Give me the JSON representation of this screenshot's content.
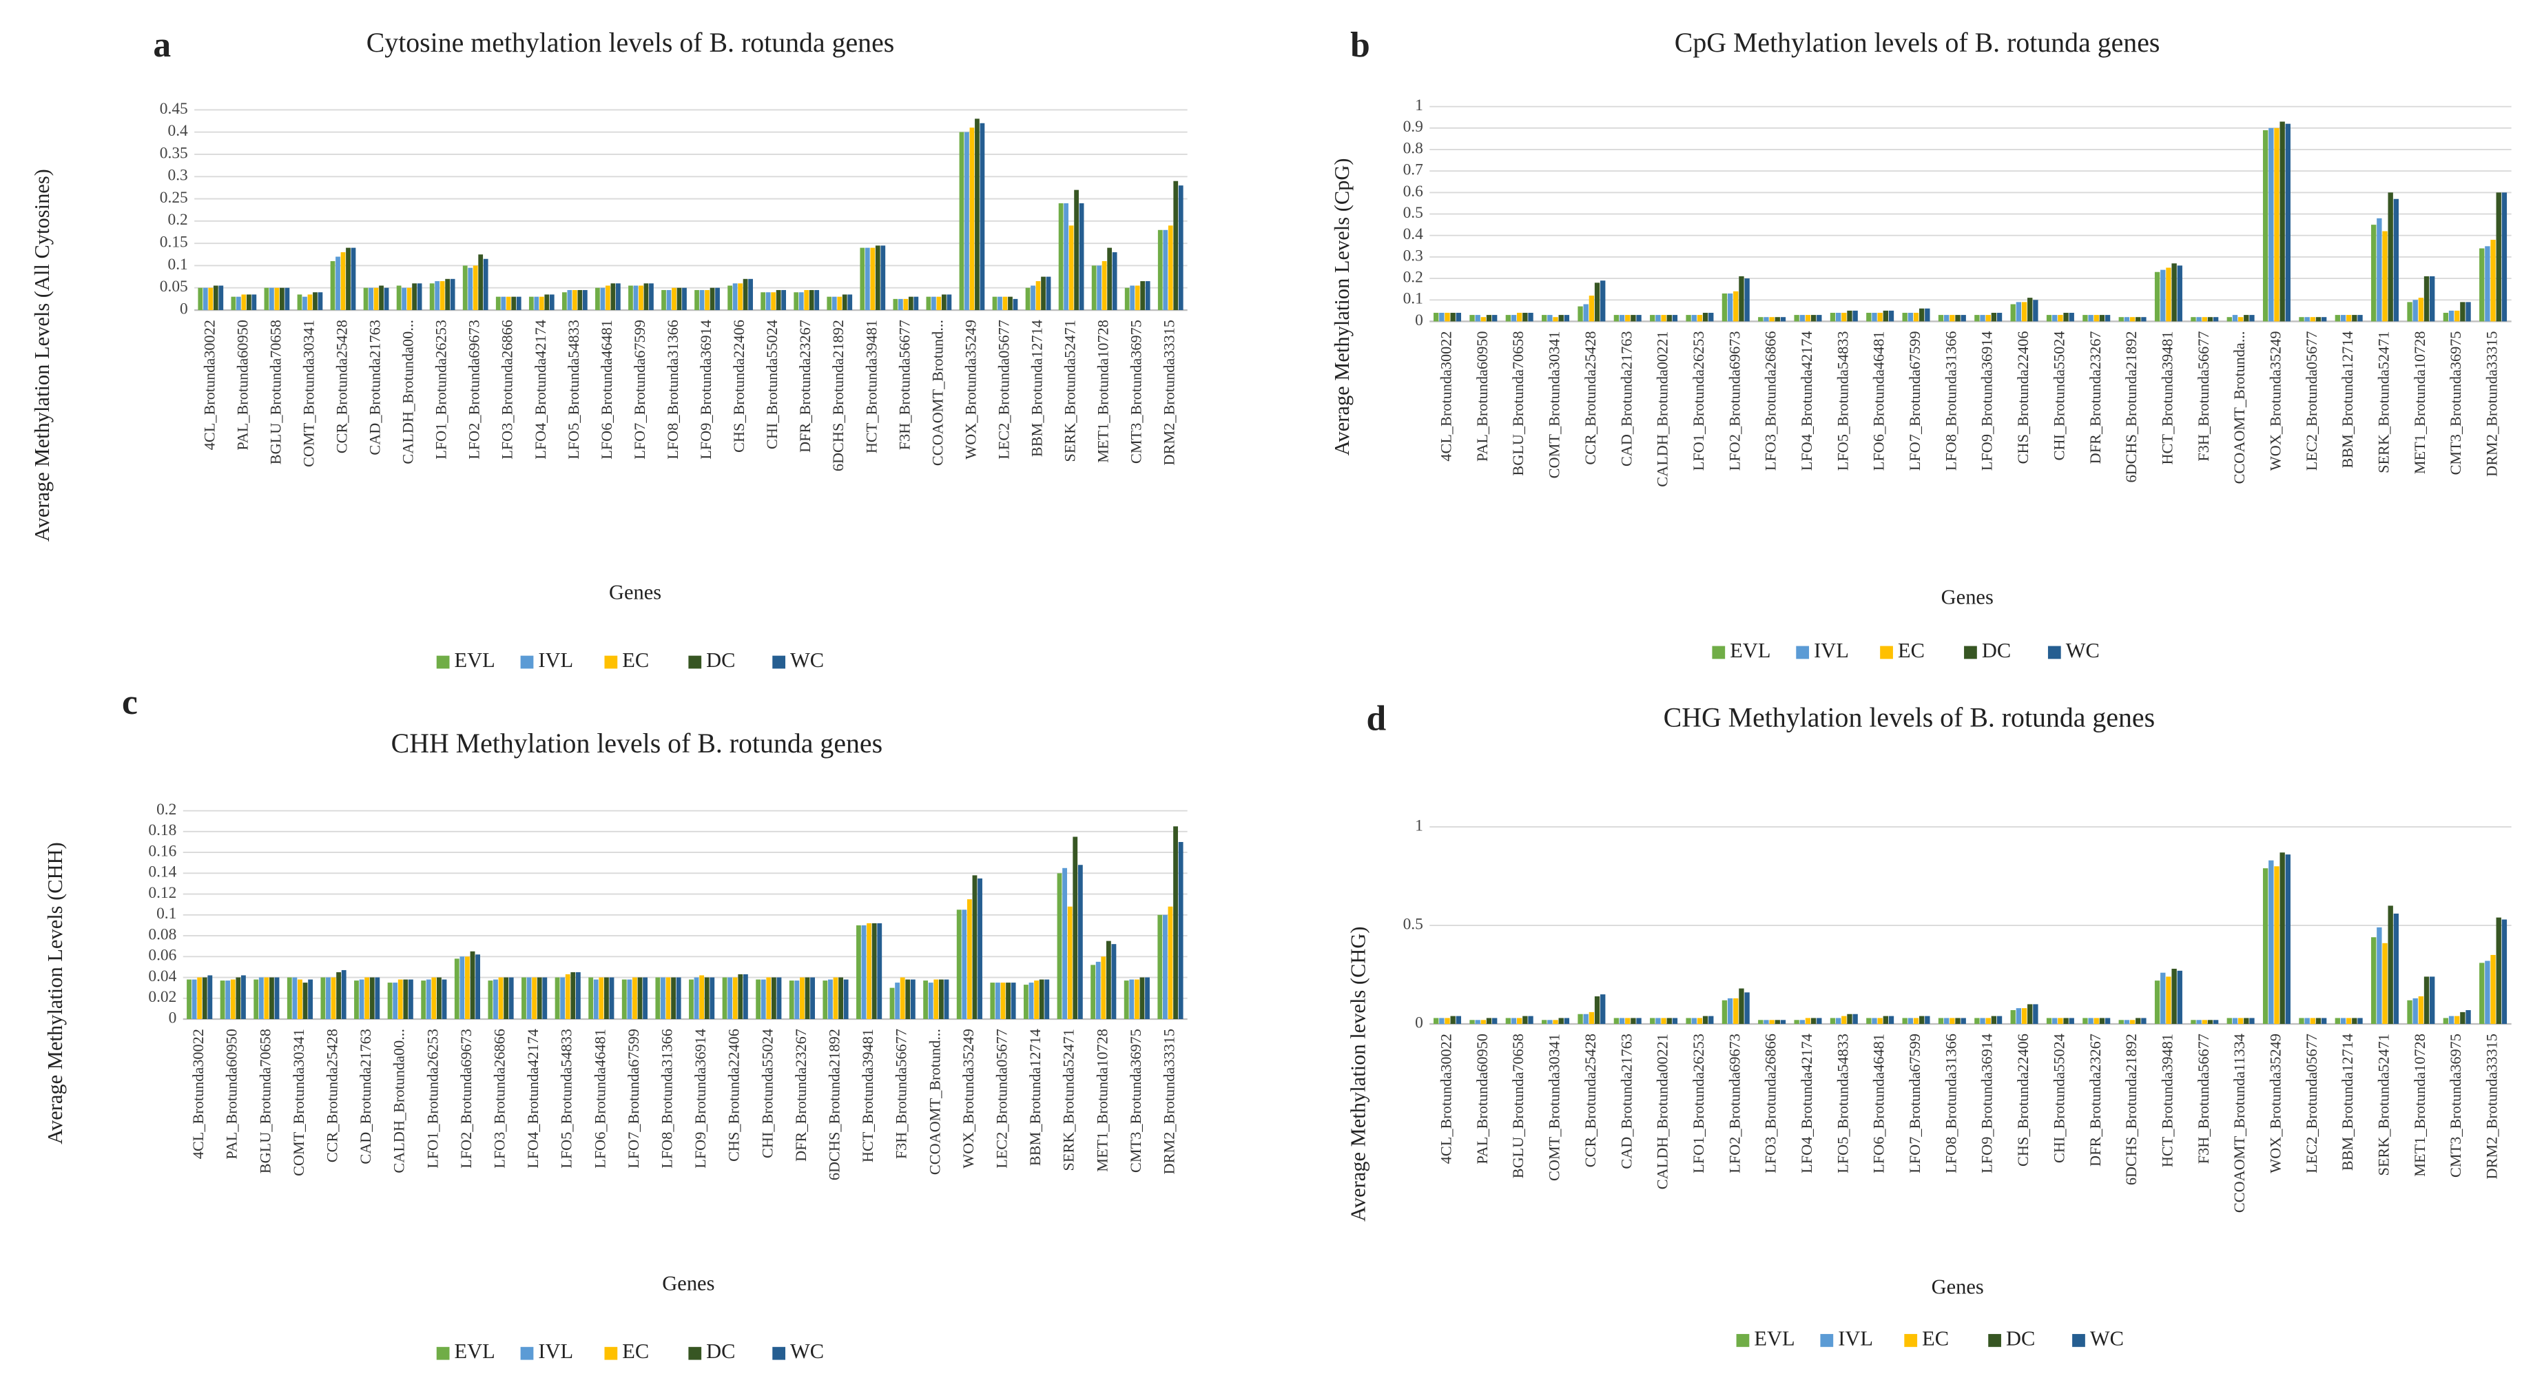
{
  "chart_data": [
    {
      "type": "bar",
      "label": "a",
      "title": "Cytosine methylation levels of B. rotunda genes",
      "x_label": "Genes",
      "y_label": "Average Methylation Levels (All Cytosines)",
      "categories": [
        "4CL_Brotunda30022",
        "PAL_Brotunda60950",
        "BGLU_Brotunda70658",
        "COMT_Brotunda30341",
        "CCR_Brotunda25428",
        "CAD_Brotunda21763",
        "CALDH_Brotunda00...",
        "LFO1_Brotunda26253",
        "LFO2_Brotunda69673",
        "LFO3_Brotunda26866",
        "LFO4_Brotunda42174",
        "LFO5_Brotunda54833",
        "LFO6_Brotunda46481",
        "LFO7_Brotunda67599",
        "LFO8_Brotunda31366",
        "LFO9_Brotunda36914",
        "CHS_Brotunda22406",
        "CHI_Brotunda55024",
        "DFR_Brotunda23267",
        "6DCHS_Brotunda21892",
        "HCT_Brotunda39481",
        "F3H_Brotunda56677",
        "CCOAOMT_Brotund...",
        "WOX_Brotunda35249",
        "LEC2_Brotunda05677",
        "BBM_Brotunda12714",
        "SERK_Brotunda52471",
        "MET1_Brotunda10728",
        "CMT3_Brotunda36975",
        "DRM2_Brotunda33315"
      ],
      "series": [
        {
          "name": "EVL",
          "color": "#70ad47",
          "values": [
            0.05,
            0.03,
            0.05,
            0.035,
            0.11,
            0.05,
            0.055,
            0.06,
            0.1,
            0.03,
            0.03,
            0.04,
            0.05,
            0.055,
            0.045,
            0.045,
            0.055,
            0.04,
            0.04,
            0.03,
            0.14,
            0.025,
            0.03,
            0.4,
            0.03,
            0.05,
            0.24,
            0.1,
            0.05,
            0.18
          ]
        },
        {
          "name": "IVL",
          "color": "#5b9bd5",
          "values": [
            0.05,
            0.03,
            0.05,
            0.03,
            0.12,
            0.05,
            0.05,
            0.065,
            0.095,
            0.03,
            0.03,
            0.045,
            0.05,
            0.055,
            0.045,
            0.045,
            0.06,
            0.04,
            0.04,
            0.03,
            0.14,
            0.025,
            0.03,
            0.4,
            0.03,
            0.055,
            0.24,
            0.1,
            0.055,
            0.18
          ]
        },
        {
          "name": "EC",
          "color": "#ffc000",
          "values": [
            0.05,
            0.035,
            0.05,
            0.035,
            0.13,
            0.05,
            0.05,
            0.065,
            0.1,
            0.03,
            0.03,
            0.045,
            0.055,
            0.055,
            0.05,
            0.045,
            0.06,
            0.04,
            0.045,
            0.03,
            0.14,
            0.025,
            0.03,
            0.41,
            0.03,
            0.065,
            0.19,
            0.11,
            0.055,
            0.19
          ]
        },
        {
          "name": "DC",
          "color": "#375623",
          "values": [
            0.055,
            0.035,
            0.05,
            0.04,
            0.14,
            0.055,
            0.06,
            0.07,
            0.125,
            0.03,
            0.035,
            0.045,
            0.06,
            0.06,
            0.05,
            0.05,
            0.07,
            0.045,
            0.045,
            0.035,
            0.145,
            0.03,
            0.035,
            0.43,
            0.03,
            0.075,
            0.27,
            0.14,
            0.065,
            0.29
          ]
        },
        {
          "name": "WC",
          "color": "#255e91",
          "values": [
            0.055,
            0.035,
            0.05,
            0.04,
            0.14,
            0.05,
            0.06,
            0.07,
            0.115,
            0.03,
            0.035,
            0.045,
            0.06,
            0.06,
            0.05,
            0.05,
            0.07,
            0.045,
            0.045,
            0.035,
            0.145,
            0.03,
            0.035,
            0.42,
            0.025,
            0.075,
            0.24,
            0.13,
            0.065,
            0.28
          ]
        }
      ],
      "ylim": [
        0,
        0.45
      ],
      "yticks": [
        0,
        0.05,
        0.1,
        0.15,
        0.2,
        0.25,
        0.3,
        0.35,
        0.4,
        0.45
      ],
      "grid": true,
      "legend": "bottom"
    },
    {
      "type": "bar",
      "label": "b",
      "title": "CpG Methylation levels of B. rotunda genes",
      "x_label": "Genes",
      "y_label": "Average Methylation Levels (CpG)",
      "categories": [
        "4CL_Brotunda30022",
        "PAL_Brotunda60950",
        "BGLU_Brotunda70658",
        "COMT_Brotunda30341",
        "CCR_Brotunda25428",
        "CAD_Brotunda21763",
        "CALDH_Brotunda00221",
        "LFO1_Brotunda26253",
        "LFO2_Brotunda69673",
        "LFO3_Brotunda26866",
        "LFO4_Brotunda42174",
        "LFO5_Brotunda54833",
        "LFO6_Brotunda46481",
        "LFO7_Brotunda67599",
        "LFO8_Brotunda31366",
        "LFO9_Brotunda36914",
        "CHS_Brotunda22406",
        "CHI_Brotunda55024",
        "DFR_Brotunda23267",
        "6DCHS_Brotunda21892",
        "HCT_Brotunda39481",
        "F3H_Brotunda56677",
        "CCOAOMT_Brotunda...",
        "WOX_Brotunda35249",
        "LEC2_Brotunda05677",
        "BBM_Brotunda12714",
        "SERK_Brotunda52471",
        "MET1_Brotunda10728",
        "CMT3_Brotunda36975",
        "DRM2_Brotunda33315"
      ],
      "series": [
        {
          "name": "EVL",
          "color": "#70ad47",
          "values": [
            0.04,
            0.03,
            0.03,
            0.03,
            0.07,
            0.03,
            0.03,
            0.03,
            0.13,
            0.02,
            0.03,
            0.04,
            0.04,
            0.04,
            0.03,
            0.03,
            0.08,
            0.03,
            0.03,
            0.02,
            0.23,
            0.02,
            0.02,
            0.89,
            0.02,
            0.03,
            0.45,
            0.09,
            0.04,
            0.34
          ]
        },
        {
          "name": "IVL",
          "color": "#5b9bd5",
          "values": [
            0.04,
            0.03,
            0.03,
            0.03,
            0.08,
            0.03,
            0.03,
            0.03,
            0.13,
            0.02,
            0.03,
            0.04,
            0.04,
            0.04,
            0.03,
            0.03,
            0.09,
            0.03,
            0.03,
            0.02,
            0.24,
            0.02,
            0.03,
            0.9,
            0.02,
            0.03,
            0.48,
            0.1,
            0.05,
            0.35
          ]
        },
        {
          "name": "EC",
          "color": "#ffc000",
          "values": [
            0.04,
            0.02,
            0.04,
            0.02,
            0.12,
            0.03,
            0.03,
            0.03,
            0.14,
            0.02,
            0.03,
            0.04,
            0.04,
            0.04,
            0.03,
            0.03,
            0.09,
            0.03,
            0.03,
            0.02,
            0.25,
            0.02,
            0.02,
            0.9,
            0.02,
            0.03,
            0.42,
            0.11,
            0.05,
            0.38
          ]
        },
        {
          "name": "DC",
          "color": "#375623",
          "values": [
            0.04,
            0.03,
            0.04,
            0.03,
            0.18,
            0.03,
            0.03,
            0.04,
            0.21,
            0.02,
            0.03,
            0.05,
            0.05,
            0.06,
            0.03,
            0.04,
            0.11,
            0.04,
            0.03,
            0.02,
            0.27,
            0.02,
            0.03,
            0.93,
            0.02,
            0.03,
            0.6,
            0.21,
            0.09,
            0.6
          ]
        },
        {
          "name": "WC",
          "color": "#255e91",
          "values": [
            0.04,
            0.03,
            0.04,
            0.03,
            0.19,
            0.03,
            0.03,
            0.04,
            0.2,
            0.02,
            0.03,
            0.05,
            0.05,
            0.06,
            0.03,
            0.04,
            0.1,
            0.04,
            0.03,
            0.02,
            0.26,
            0.02,
            0.03,
            0.92,
            0.02,
            0.03,
            0.57,
            0.21,
            0.09,
            0.6
          ]
        }
      ],
      "ylim": [
        0,
        1
      ],
      "yticks": [
        0,
        0.1,
        0.2,
        0.3,
        0.4,
        0.5,
        0.6,
        0.7,
        0.8,
        0.9,
        1
      ],
      "grid": true,
      "legend": "bottom"
    },
    {
      "type": "bar",
      "label": "c",
      "title": "CHH Methylation levels of B. rotunda genes",
      "x_label": "Genes",
      "y_label": "Average Methylation Levels (CHH)",
      "categories": [
        "4CL_Brotunda30022",
        "PAL_Brotunda60950",
        "BGLU_Brotunda70658",
        "COMT_Brotunda30341",
        "CCR_Brotunda25428",
        "CAD_Brotunda21763",
        "CALDH_Brotunda00...",
        "LFO1_Brotunda26253",
        "LFO2_Brotunda69673",
        "LFO3_Brotunda26866",
        "LFO4_Brotunda42174",
        "LFO5_Brotunda54833",
        "LFO6_Brotunda46481",
        "LFO7_Brotunda67599",
        "LFO8_Brotunda31366",
        "LFO9_Brotunda36914",
        "CHS_Brotunda22406",
        "CHI_Brotunda55024",
        "DFR_Brotunda23267",
        "6DCHS_Brotunda21892",
        "HCT_Brotunda39481",
        "F3H_Brotunda56677",
        "CCOAOMT_Brotund...",
        "WOX_Brotunda35249",
        "LEC2_Brotunda05677",
        "BBM_Brotunda12714",
        "SERK_Brotunda52471",
        "MET1_Brotunda10728",
        "CMT3_Brotunda36975",
        "DRM2_Brotunda33315"
      ],
      "series": [
        {
          "name": "EVL",
          "color": "#70ad47",
          "values": [
            0.038,
            0.037,
            0.038,
            0.04,
            0.04,
            0.037,
            0.035,
            0.037,
            0.058,
            0.037,
            0.04,
            0.04,
            0.04,
            0.038,
            0.04,
            0.038,
            0.04,
            0.038,
            0.037,
            0.037,
            0.09,
            0.03,
            0.037,
            0.105,
            0.035,
            0.033,
            0.14,
            0.052,
            0.037,
            0.1
          ]
        },
        {
          "name": "IVL",
          "color": "#5b9bd5",
          "values": [
            0.038,
            0.037,
            0.04,
            0.04,
            0.04,
            0.038,
            0.035,
            0.038,
            0.06,
            0.038,
            0.04,
            0.04,
            0.038,
            0.038,
            0.04,
            0.04,
            0.04,
            0.038,
            0.037,
            0.038,
            0.09,
            0.035,
            0.035,
            0.105,
            0.035,
            0.035,
            0.145,
            0.055,
            0.038,
            0.1
          ]
        },
        {
          "name": "EC",
          "color": "#ffc000",
          "values": [
            0.04,
            0.038,
            0.04,
            0.038,
            0.04,
            0.04,
            0.038,
            0.04,
            0.06,
            0.04,
            0.04,
            0.043,
            0.04,
            0.04,
            0.04,
            0.042,
            0.04,
            0.04,
            0.04,
            0.04,
            0.092,
            0.04,
            0.038,
            0.115,
            0.035,
            0.037,
            0.108,
            0.06,
            0.038,
            0.108
          ]
        },
        {
          "name": "DC",
          "color": "#375623",
          "values": [
            0.04,
            0.04,
            0.04,
            0.035,
            0.045,
            0.04,
            0.038,
            0.04,
            0.065,
            0.04,
            0.04,
            0.045,
            0.04,
            0.04,
            0.04,
            0.04,
            0.043,
            0.04,
            0.04,
            0.04,
            0.092,
            0.038,
            0.038,
            0.138,
            0.035,
            0.038,
            0.175,
            0.075,
            0.04,
            0.185
          ]
        },
        {
          "name": "WC",
          "color": "#255e91",
          "values": [
            0.042,
            0.042,
            0.04,
            0.038,
            0.047,
            0.04,
            0.038,
            0.038,
            0.062,
            0.04,
            0.04,
            0.045,
            0.04,
            0.04,
            0.04,
            0.04,
            0.043,
            0.04,
            0.04,
            0.038,
            0.092,
            0.038,
            0.038,
            0.135,
            0.035,
            0.038,
            0.148,
            0.072,
            0.04,
            0.17
          ]
        }
      ],
      "ylim": [
        0,
        0.2
      ],
      "yticks": [
        0,
        0.02,
        0.04,
        0.06,
        0.08,
        0.1,
        0.12,
        0.14,
        0.16,
        0.18,
        0.2
      ],
      "grid": true,
      "legend": "bottom"
    },
    {
      "type": "bar",
      "label": "d",
      "title": "CHG Methylation levels of B. rotunda genes",
      "x_label": "Genes",
      "y_label": "Average Methylation levels (CHG)",
      "categories": [
        "4CL_Brotunda30022",
        "PAL_Brotunda60950",
        "BGLU_Brotunda70658",
        "COMT_Brotunda30341",
        "CCR_Brotunda25428",
        "CAD_Brotunda21763",
        "CALDH_Brotunda00221",
        "LFO1_Brotunda26253",
        "LFO2_Brotunda69673",
        "LFO3_Brotunda26866",
        "LFO4_Brotunda42174",
        "LFO5_Brotunda54833",
        "LFO6_Brotunda46481",
        "LFO7_Brotunda67599",
        "LFO8_Brotunda31366",
        "LFO9_Brotunda36914",
        "CHS_Brotunda22406",
        "CHI_Brotunda55024",
        "DFR_Brotunda23267",
        "6DCHS_Brotunda21892",
        "HCT_Brotunda39481",
        "F3H_Brotunda56677",
        "CCOAOMT_Brotunda11334",
        "WOX_Brotunda35249",
        "LEC2_Brotunda05677",
        "BBM_Brotunda12714",
        "SERK_Brotunda52471",
        "MET1_Brotunda10728",
        "CMT3_Brotunda36975",
        "DRM2_Brotunda33315"
      ],
      "series": [
        {
          "name": "EVL",
          "color": "#70ad47",
          "values": [
            0.03,
            0.02,
            0.03,
            0.02,
            0.05,
            0.03,
            0.03,
            0.03,
            0.12,
            0.02,
            0.02,
            0.03,
            0.03,
            0.03,
            0.03,
            0.03,
            0.07,
            0.03,
            0.03,
            0.02,
            0.22,
            0.02,
            0.03,
            0.79,
            0.03,
            0.03,
            0.44,
            0.12,
            0.03,
            0.31
          ]
        },
        {
          "name": "IVL",
          "color": "#5b9bd5",
          "values": [
            0.03,
            0.02,
            0.03,
            0.02,
            0.05,
            0.03,
            0.03,
            0.03,
            0.13,
            0.02,
            0.02,
            0.03,
            0.03,
            0.03,
            0.03,
            0.03,
            0.08,
            0.03,
            0.03,
            0.02,
            0.26,
            0.02,
            0.03,
            0.83,
            0.03,
            0.03,
            0.49,
            0.13,
            0.04,
            0.32
          ]
        },
        {
          "name": "EC",
          "color": "#ffc000",
          "values": [
            0.03,
            0.02,
            0.03,
            0.02,
            0.06,
            0.03,
            0.03,
            0.03,
            0.13,
            0.02,
            0.03,
            0.04,
            0.03,
            0.03,
            0.03,
            0.03,
            0.08,
            0.03,
            0.03,
            0.02,
            0.24,
            0.02,
            0.03,
            0.8,
            0.03,
            0.03,
            0.41,
            0.14,
            0.04,
            0.35
          ]
        },
        {
          "name": "DC",
          "color": "#375623",
          "values": [
            0.04,
            0.03,
            0.04,
            0.03,
            0.14,
            0.03,
            0.03,
            0.04,
            0.18,
            0.02,
            0.03,
            0.05,
            0.04,
            0.04,
            0.03,
            0.04,
            0.1,
            0.03,
            0.03,
            0.03,
            0.28,
            0.02,
            0.03,
            0.87,
            0.03,
            0.03,
            0.6,
            0.24,
            0.06,
            0.54
          ]
        },
        {
          "name": "WC",
          "color": "#255e91",
          "values": [
            0.04,
            0.03,
            0.04,
            0.03,
            0.15,
            0.03,
            0.03,
            0.04,
            0.16,
            0.02,
            0.03,
            0.05,
            0.04,
            0.04,
            0.03,
            0.04,
            0.1,
            0.03,
            0.03,
            0.03,
            0.27,
            0.02,
            0.03,
            0.86,
            0.03,
            0.03,
            0.56,
            0.24,
            0.07,
            0.53
          ]
        }
      ],
      "ylim": [
        0,
        1
      ],
      "yticks": [
        0,
        0.5,
        1
      ],
      "grid": true,
      "legend": "bottom"
    }
  ]
}
